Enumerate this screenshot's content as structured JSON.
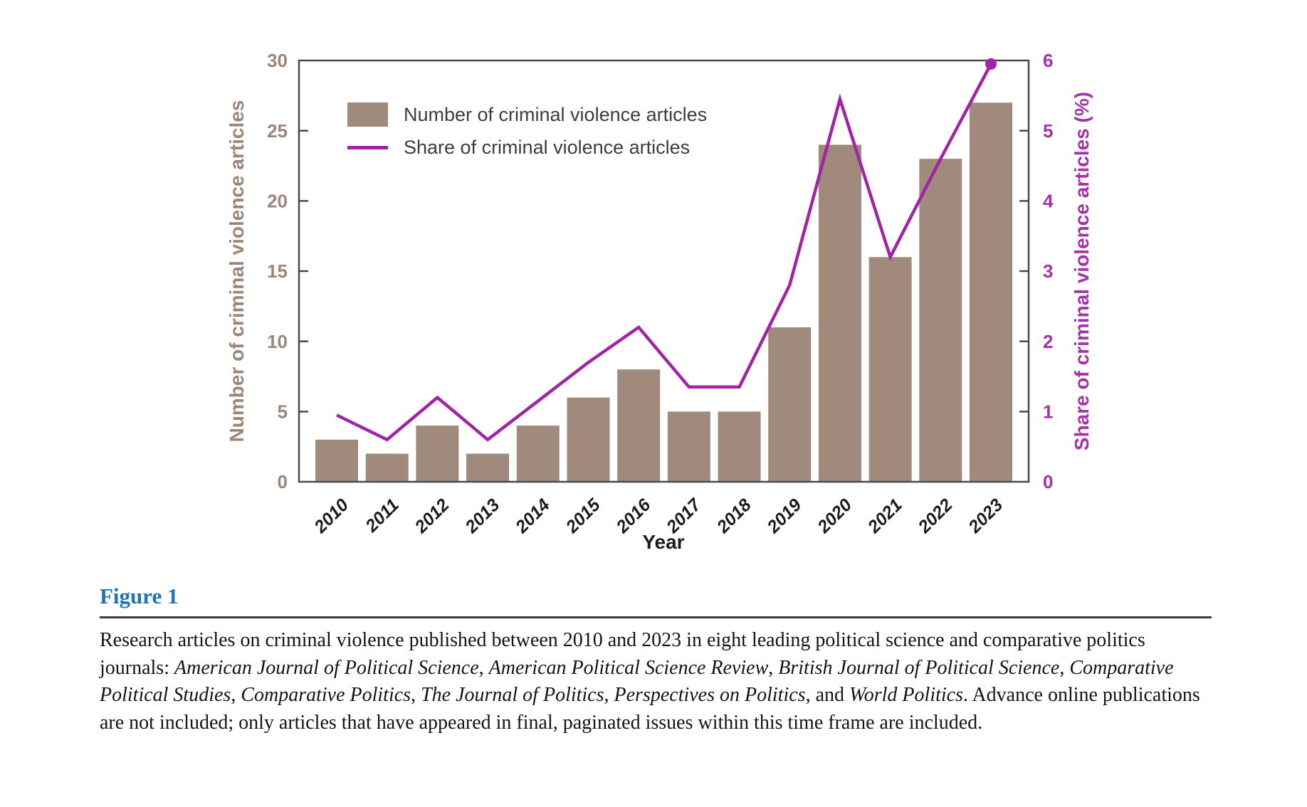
{
  "figure": {
    "heading": "Figure 1",
    "heading_color": "#1B74BE",
    "caption_segments": [
      {
        "text": "Research articles on criminal violence published between 2010 and 2023 in eight leading political science and comparative politics journals: ",
        "italic": false
      },
      {
        "text": "American Journal of Political Science",
        "italic": true
      },
      {
        "text": ", ",
        "italic": false
      },
      {
        "text": "American Political Science Review",
        "italic": true
      },
      {
        "text": ", ",
        "italic": false
      },
      {
        "text": "British Journal of Political Science",
        "italic": true
      },
      {
        "text": ", ",
        "italic": false
      },
      {
        "text": "Comparative Political Studies",
        "italic": true
      },
      {
        "text": ", ",
        "italic": false
      },
      {
        "text": "Comparative Politics",
        "italic": true
      },
      {
        "text": ", ",
        "italic": false
      },
      {
        "text": "The Journal of Politics",
        "italic": true
      },
      {
        "text": ", ",
        "italic": false
      },
      {
        "text": "Perspectives on Politics",
        "italic": true
      },
      {
        "text": ", and ",
        "italic": false
      },
      {
        "text": "World Politics",
        "italic": true
      },
      {
        "text": ". Advance online publications are not included; only articles that have appeared in final, paginated issues within this time frame are included.",
        "italic": false
      }
    ]
  },
  "chart_data": {
    "type": "bar",
    "title": "",
    "categories": [
      "2010",
      "2011",
      "2012",
      "2013",
      "2014",
      "2015",
      "2016",
      "2017",
      "2018",
      "2019",
      "2020",
      "2021",
      "2022",
      "2023"
    ],
    "series": [
      {
        "name": "Number of criminal violence articles",
        "type": "bar",
        "axis": "left",
        "color": "#9F8A7B",
        "values": [
          3,
          2,
          4,
          2,
          4,
          6,
          8,
          5,
          5,
          11,
          24,
          16,
          23,
          27
        ]
      },
      {
        "name": "Share of criminal violence articles",
        "type": "line",
        "axis": "right",
        "color": "#A124A5",
        "end_marker": true,
        "values": [
          0.95,
          0.6,
          1.2,
          0.6,
          1.15,
          1.7,
          2.2,
          1.35,
          1.35,
          2.8,
          5.45,
          3.2,
          4.6,
          5.95
        ]
      }
    ],
    "xlabel": "Year",
    "left_axis": {
      "label": "Number of criminal violence articles",
      "range": [
        0,
        30
      ],
      "ticks": [
        0,
        5,
        10,
        15,
        20,
        25,
        30
      ],
      "color": "#9C8678"
    },
    "right_axis": {
      "label": "Share of criminal violence articles (%)",
      "range": [
        0,
        6
      ],
      "ticks": [
        0,
        1,
        2,
        3,
        4,
        5,
        6
      ],
      "color": "#A333A6"
    },
    "legend_position": "top-left",
    "grid": false,
    "frame_color": "#4A4A4A",
    "x_tick_label_color": "#1C1C1C"
  }
}
